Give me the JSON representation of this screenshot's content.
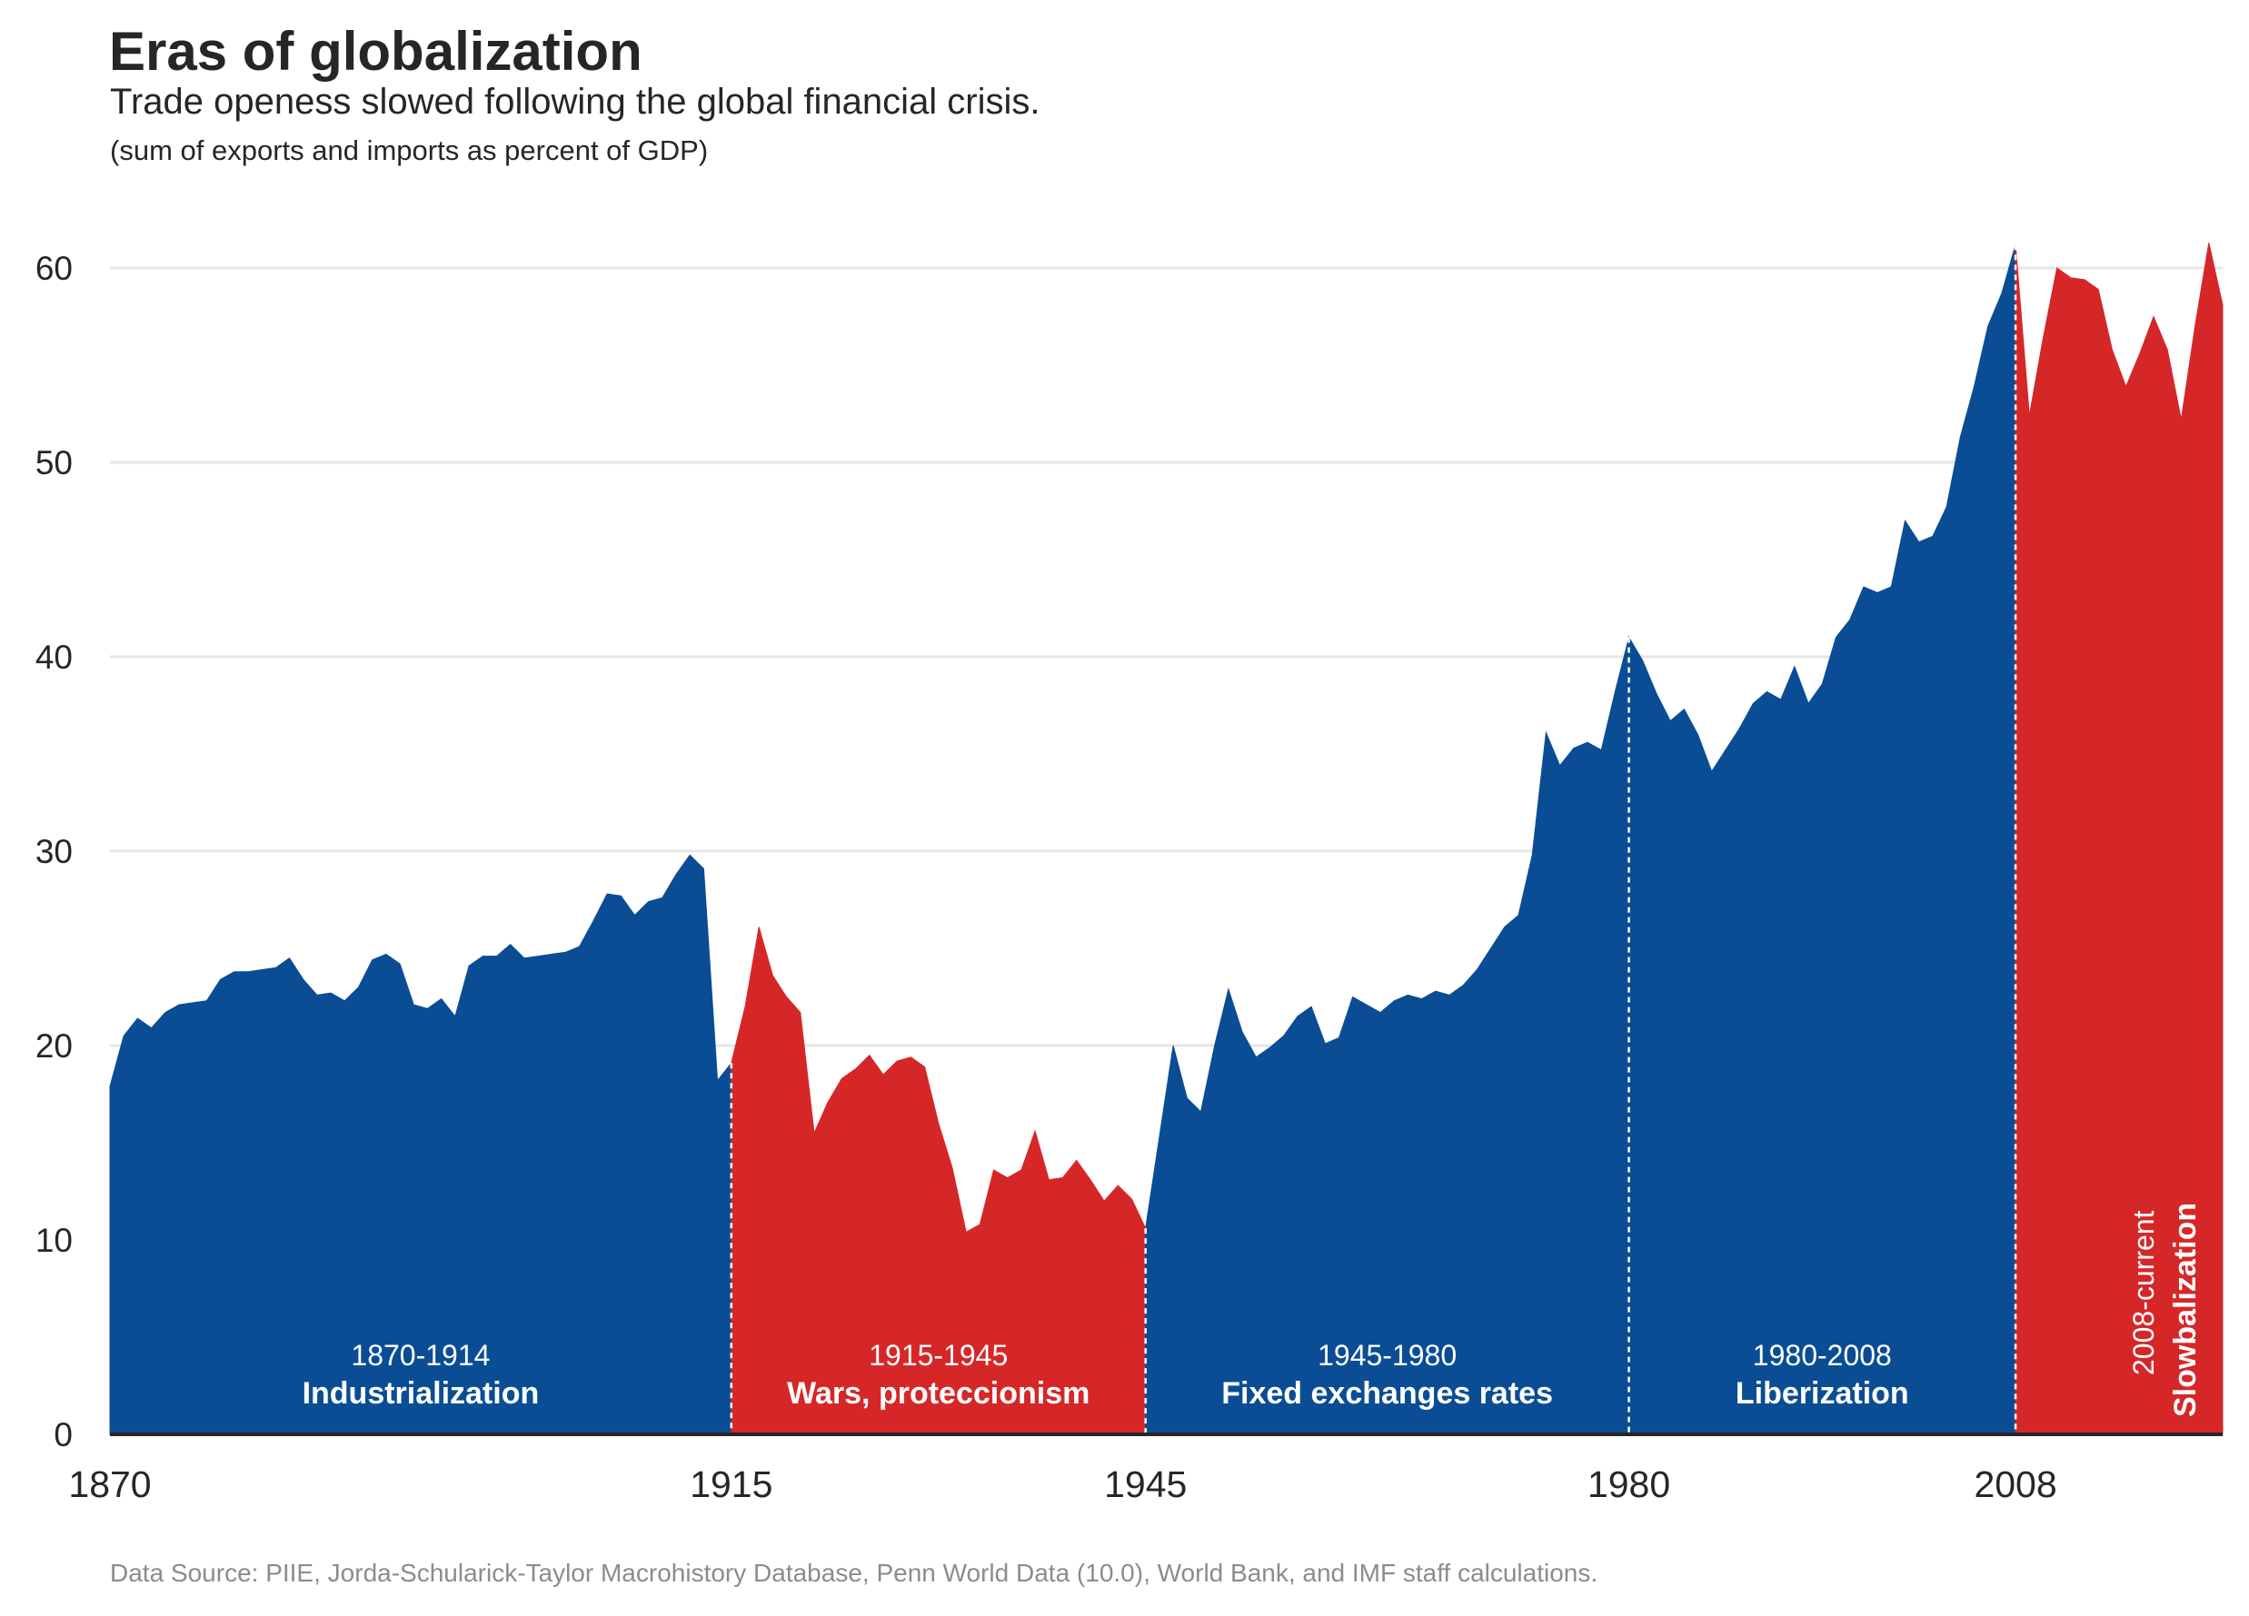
{
  "title": "Eras of globalization",
  "subtitle": "Trade openess slowed following the global financial crisis.",
  "unit_note": "(sum of exports and imports as percent of GDP)",
  "source": "Data Source: PIIE, Jorda-Schularick-Taylor Macrohistory Database, Penn World Data (10.0), World Bank, and IMF staff calculations.",
  "colors": {
    "globalization": "#0b4d94",
    "deglobalization": "#d62728",
    "grid": "#e6e6e6",
    "axis": "#262626"
  },
  "chart_data": {
    "type": "area",
    "title": "Eras of globalization",
    "xlabel": "",
    "ylabel": "",
    "xlim": [
      1870,
      2023
    ],
    "ylim": [
      0,
      63
    ],
    "grid": true,
    "yticks": [
      "0",
      "10",
      "20",
      "30",
      "40",
      "50",
      "60"
    ],
    "xticks": [
      "1870",
      "1915",
      "1945",
      "1980",
      "2008"
    ],
    "eras": [
      {
        "start": 1870,
        "end": 1915,
        "years": "1870-1914",
        "name": "Industrialization",
        "kind": "globalization"
      },
      {
        "start": 1915,
        "end": 1945,
        "years": "1915-1945",
        "name": "Wars, proteccionism",
        "kind": "deglobalization"
      },
      {
        "start": 1945,
        "end": 1980,
        "years": "1945-1980",
        "name": "Fixed exchanges rates",
        "kind": "globalization"
      },
      {
        "start": 1980,
        "end": 2008,
        "years": "1980-2008",
        "name": "Liberization",
        "kind": "globalization"
      },
      {
        "start": 2008,
        "end": 2023,
        "years": "2008-current",
        "name": "Slowbalization",
        "kind": "deglobalization"
      }
    ],
    "x": [
      1870,
      1871,
      1872,
      1873,
      1874,
      1875,
      1876,
      1877,
      1878,
      1879,
      1880,
      1881,
      1882,
      1883,
      1884,
      1885,
      1886,
      1887,
      1888,
      1889,
      1890,
      1891,
      1892,
      1893,
      1894,
      1895,
      1896,
      1897,
      1898,
      1899,
      1900,
      1901,
      1902,
      1903,
      1904,
      1905,
      1906,
      1907,
      1908,
      1909,
      1910,
      1911,
      1912,
      1913,
      1914,
      1915,
      1916,
      1917,
      1918,
      1919,
      1920,
      1921,
      1922,
      1923,
      1924,
      1925,
      1926,
      1927,
      1928,
      1929,
      1930,
      1931,
      1932,
      1933,
      1934,
      1935,
      1936,
      1937,
      1938,
      1939,
      1940,
      1941,
      1942,
      1943,
      1944,
      1945,
      1946,
      1947,
      1948,
      1949,
      1950,
      1951,
      1952,
      1953,
      1954,
      1955,
      1956,
      1957,
      1958,
      1959,
      1960,
      1961,
      1962,
      1963,
      1964,
      1965,
      1966,
      1967,
      1968,
      1969,
      1970,
      1971,
      1972,
      1973,
      1974,
      1975,
      1976,
      1977,
      1978,
      1979,
      1980,
      1981,
      1982,
      1983,
      1984,
      1985,
      1986,
      1987,
      1988,
      1989,
      1990,
      1991,
      1992,
      1993,
      1994,
      1995,
      1996,
      1997,
      1998,
      1999,
      2000,
      2001,
      2002,
      2003,
      2004,
      2005,
      2006,
      2007,
      2008,
      2009,
      2010,
      2011,
      2012,
      2013,
      2014,
      2015,
      2016,
      2017,
      2018,
      2019,
      2020,
      2021,
      2022,
      2023
    ],
    "y": [
      17.9,
      20.5,
      21.4,
      20.9,
      21.7,
      22.1,
      22.2,
      22.3,
      23.4,
      23.8,
      23.8,
      23.9,
      24.0,
      24.5,
      23.4,
      22.6,
      22.7,
      22.3,
      23.0,
      24.4,
      24.7,
      24.2,
      22.1,
      21.9,
      22.4,
      21.5,
      24.1,
      24.6,
      24.6,
      25.2,
      24.5,
      24.6,
      24.7,
      24.8,
      25.1,
      26.4,
      27.8,
      27.7,
      26.7,
      27.4,
      27.6,
      28.8,
      29.8,
      29.1,
      18.2,
      19.1,
      22.0,
      26.1,
      23.6,
      22.5,
      21.7,
      15.5,
      17.1,
      18.3,
      18.8,
      19.5,
      18.5,
      19.2,
      19.4,
      18.9,
      16.0,
      13.7,
      10.4,
      10.8,
      13.6,
      13.2,
      13.6,
      15.6,
      13.1,
      13.2,
      14.1,
      13.1,
      12.0,
      12.8,
      12.1,
      10.6,
      15.3,
      20.0,
      17.3,
      16.6,
      20.0,
      22.9,
      20.7,
      19.4,
      19.9,
      20.5,
      21.5,
      22.0,
      20.1,
      20.4,
      22.5,
      22.1,
      21.7,
      22.3,
      22.6,
      22.4,
      22.8,
      22.6,
      23.1,
      23.9,
      25.0,
      26.1,
      26.7,
      29.8,
      36.1,
      34.4,
      35.3,
      35.6,
      35.2,
      38.2,
      41.0,
      39.8,
      38.1,
      36.7,
      37.3,
      36.0,
      34.1,
      35.2,
      36.3,
      37.6,
      38.2,
      37.8,
      39.5,
      37.6,
      38.6,
      41.0,
      41.9,
      43.6,
      43.3,
      43.6,
      47.0,
      45.9,
      46.2,
      47.7,
      51.3,
      53.9,
      57.0,
      58.7,
      61.2,
      52.4,
      56.4,
      60.0,
      59.5,
      59.4,
      58.9,
      55.8,
      53.9,
      55.6,
      57.5,
      55.8,
      52.2,
      57.0,
      61.3,
      58.1
    ]
  }
}
